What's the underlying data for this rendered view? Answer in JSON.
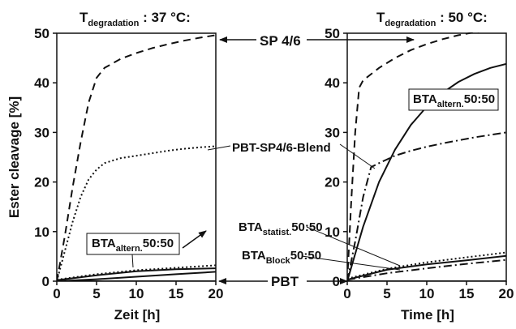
{
  "chart_data": [
    {
      "type": "line",
      "title_main": "T",
      "title_sub": "degradation",
      "title_value": " : 37 °C:",
      "xlabel": "Zeit [h]",
      "ylabel": "Ester cleavage [%]",
      "xlim": [
        0,
        20
      ],
      "ylim": [
        0,
        50
      ],
      "xticks": [
        "0",
        "5",
        "10",
        "15",
        "20"
      ],
      "yticks": [
        "0",
        "10",
        "20",
        "30",
        "40",
        "50"
      ],
      "series": [
        {
          "style": "dashed",
          "x": [
            0,
            1,
            2,
            3,
            4,
            5,
            6,
            8,
            10,
            12,
            14,
            16,
            18,
            20
          ],
          "y": [
            0,
            9,
            19,
            28,
            36,
            41,
            43,
            44.8,
            46,
            47,
            47.8,
            48.5,
            49.1,
            49.6
          ]
        },
        {
          "style": "dotted",
          "x": [
            0,
            1,
            2,
            3,
            4,
            5,
            6,
            8,
            10,
            12,
            14,
            16,
            18,
            20
          ],
          "y": [
            0,
            6,
            12,
            17,
            20.5,
            22.5,
            23.8,
            24.8,
            25.3,
            25.8,
            26.3,
            26.7,
            27,
            27.2
          ]
        },
        {
          "style": "dotted",
          "x": [
            0,
            5,
            10,
            15,
            20
          ],
          "y": [
            0.3,
            1.4,
            2.2,
            2.7,
            3.2
          ]
        },
        {
          "style": "solid",
          "x": [
            0,
            5,
            10,
            15,
            20
          ],
          "y": [
            0.2,
            1.2,
            2.0,
            2.4,
            2.6
          ]
        },
        {
          "style": "solid",
          "x": [
            0,
            5,
            10,
            15,
            20
          ],
          "y": [
            0,
            0.4,
            0.9,
            1.4,
            1.9
          ]
        },
        {
          "style": "solid",
          "x": [
            0,
            20
          ],
          "y": [
            0,
            0
          ]
        }
      ]
    },
    {
      "type": "line",
      "title_main": "T",
      "title_sub": "degradation",
      "title_value": " : 50 °C:",
      "xlabel": "Time [h]",
      "ylabel": "",
      "xlim": [
        0,
        20
      ],
      "ylim": [
        0,
        50
      ],
      "xticks": [
        "0",
        "5",
        "10",
        "15",
        "20"
      ],
      "yticks": [
        "0",
        "10",
        "20",
        "30",
        "40",
        "50"
      ],
      "series": [
        {
          "style": "dashed",
          "x": [
            0,
            0.5,
            1,
            1.5,
            2,
            4,
            6,
            8,
            10,
            12,
            14,
            16,
            18
          ],
          "y": [
            0,
            16,
            30,
            39,
            40.5,
            43,
            45,
            46.6,
            47.8,
            48.8,
            49.6,
            50.2,
            50.6
          ]
        },
        {
          "style": "dashdot",
          "x": [
            0,
            1,
            2,
            3,
            4,
            6,
            8,
            10,
            12,
            14,
            16,
            18,
            20
          ],
          "y": [
            0,
            8,
            17,
            23,
            23.8,
            25.3,
            26.3,
            27.1,
            27.8,
            28.4,
            29,
            29.5,
            30
          ]
        },
        {
          "style": "solid",
          "x": [
            0,
            2,
            4,
            6,
            8,
            10,
            12,
            14,
            16,
            18,
            20
          ],
          "y": [
            0,
            11,
            20,
            26.5,
            31.5,
            35.2,
            38,
            40.2,
            41.8,
            43,
            43.8
          ]
        },
        {
          "style": "dotted",
          "x": [
            0,
            5,
            10,
            15,
            20
          ],
          "y": [
            0.5,
            2.5,
            3.8,
            4.8,
            5.8
          ]
        },
        {
          "style": "solid",
          "x": [
            0,
            5,
            10,
            15,
            20
          ],
          "y": [
            0.3,
            2.3,
            3.4,
            4.2,
            5.1
          ]
        },
        {
          "style": "dashdot",
          "x": [
            0,
            5,
            10,
            15,
            20
          ],
          "y": [
            0.3,
            1.6,
            2.6,
            3.5,
            4.3
          ]
        },
        {
          "style": "solid",
          "x": [
            0,
            20
          ],
          "y": [
            0,
            0
          ]
        }
      ]
    }
  ],
  "annotations": {
    "sp46": "SP 4/6",
    "blend": "PBT-SP4/6-Blend",
    "bta_statist_main": "BTA",
    "bta_statist_sub": "statist.",
    "bta_statist_ratio": "50:50",
    "bta_block_main": "BTA",
    "bta_block_sub": "Block",
    "bta_block_ratio": "50:50",
    "pbt": "PBT",
    "bta_altern_left_main": "BTA",
    "bta_altern_left_sub": "altern.",
    "bta_altern_left_ratio": "50:50",
    "bta_altern_right_main": "BTA",
    "bta_altern_right_sub": "altern.",
    "bta_altern_right_ratio": "50:50"
  }
}
